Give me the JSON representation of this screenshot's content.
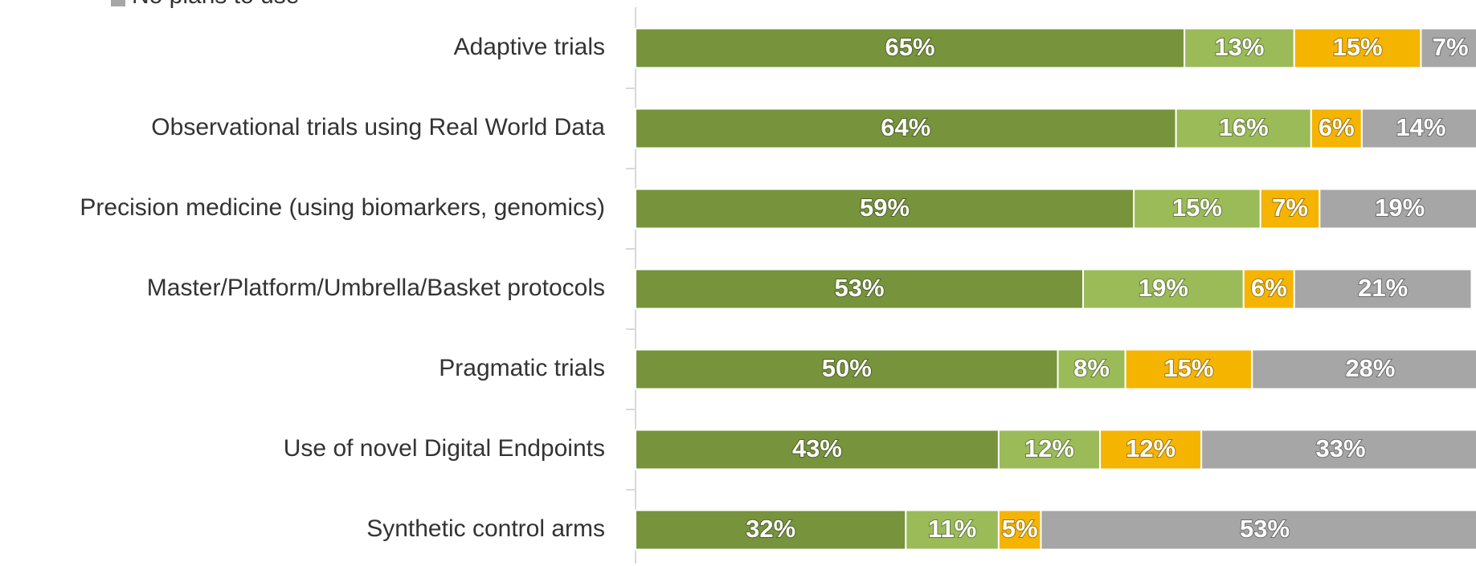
{
  "chart_data": {
    "type": "stacked-bar-horizontal",
    "categories": [
      "Adaptive trials",
      "Observational trials using Real World Data",
      "Precision medicine (using biomarkers, genomics)",
      "Master/Platform/Umbrella/Basket protocols",
      "Pragmatic trials",
      "Use of novel Digital Endpoints",
      "Synthetic control arms"
    ],
    "series": [
      {
        "color": "#77933c",
        "values": [
          65,
          64,
          59,
          53,
          50,
          43,
          32
        ],
        "value_labels": [
          "65%",
          "64%",
          "59%",
          "53%",
          "50%",
          "43%",
          "32%"
        ]
      },
      {
        "color": "#9bbb59",
        "values": [
          13,
          16,
          15,
          19,
          8,
          12,
          11
        ],
        "value_labels": [
          "13%",
          "16%",
          "15%",
          "19%",
          "8%",
          "12%",
          "11%"
        ]
      },
      {
        "color": "#f5b400",
        "values": [
          15,
          6,
          7,
          6,
          15,
          12,
          5
        ],
        "value_labels": [
          "15%",
          "6%",
          "7%",
          "6%",
          "15%",
          "12%",
          "5%"
        ]
      },
      {
        "name": "No plans to use",
        "color": "#a6a6a6",
        "values": [
          7,
          14,
          19,
          21,
          28,
          33,
          53
        ],
        "value_labels": [
          "7%",
          "14%",
          "19%",
          "21%",
          "28%",
          "33%",
          "53%"
        ]
      }
    ],
    "xlim": [
      0,
      100
    ]
  }
}
